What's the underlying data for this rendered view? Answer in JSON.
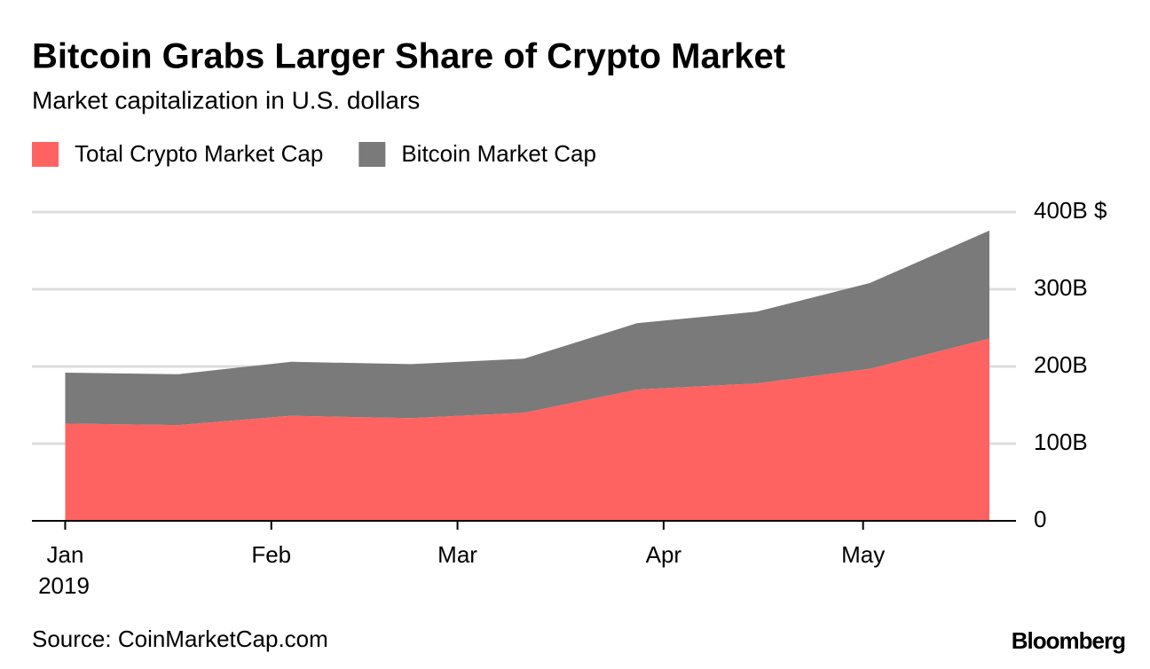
{
  "chart_data": {
    "type": "stacked_area",
    "title": "Bitcoin Grabs Larger Share of Crypto Market",
    "subtitle": "Market capitalization in U.S. dollars",
    "source": "Source: CoinMarketCap.com",
    "brand": "Bloomberg",
    "year_label": "2019",
    "x": [
      0,
      17,
      34,
      52,
      69,
      86,
      104,
      121,
      139
    ],
    "xlim": [
      -5,
      143
    ],
    "xticks": [
      {
        "value": 0,
        "label": "Jan"
      },
      {
        "value": 31,
        "label": "Feb"
      },
      {
        "value": 59,
        "label": "Mar"
      },
      {
        "value": 90,
        "label": "Apr"
      },
      {
        "value": 120,
        "label": "May"
      }
    ],
    "ylim": [
      0,
      400
    ],
    "yticks": [
      0,
      {
        "value": 100,
        "label": "100B"
      },
      {
        "value": 200,
        "label": "200B"
      },
      {
        "value": 300,
        "label": "300B"
      },
      {
        "value": 400,
        "label": "400B $"
      }
    ],
    "grid": true,
    "series": [
      {
        "name": "Total Crypto Market Cap",
        "color": "#ff6361",
        "values": [
          126,
          124,
          136,
          133,
          140,
          170,
          178,
          197,
          236
        ]
      },
      {
        "name": "Bitcoin Market Cap",
        "color": "#7a7a7a",
        "values": [
          66,
          66,
          70,
          70,
          70,
          86,
          93,
          111,
          140
        ]
      }
    ]
  }
}
